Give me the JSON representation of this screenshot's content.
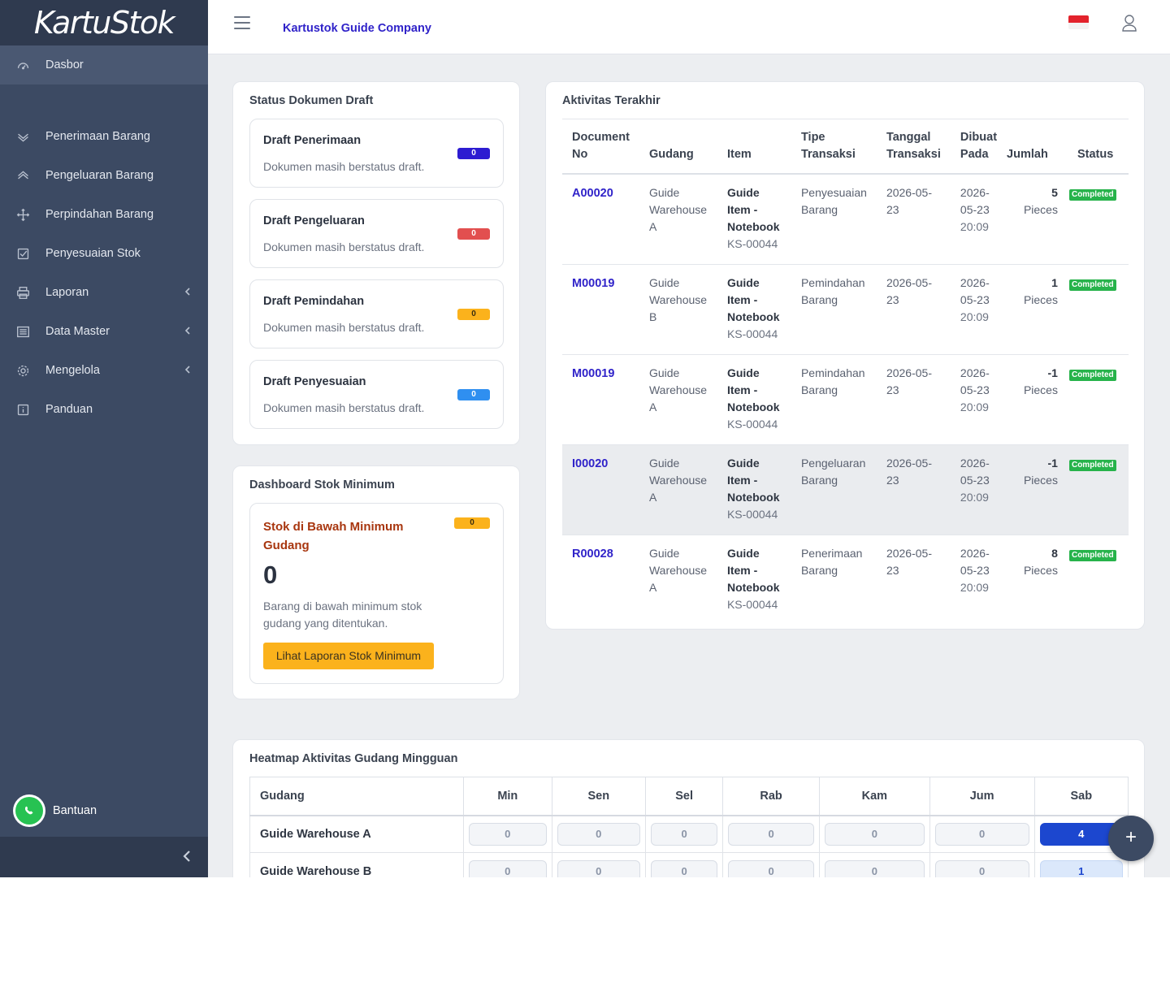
{
  "brand": {
    "name": "KartuStok"
  },
  "header": {
    "company": "Kartustok Guide Company"
  },
  "sidebar": {
    "items": [
      {
        "label": "Dasbor",
        "icon": "speedometer-icon"
      },
      {
        "label": "Penerimaan Barang",
        "icon": "chevron-down-double-icon"
      },
      {
        "label": "Pengeluaran Barang",
        "icon": "chevron-up-double-icon"
      },
      {
        "label": "Perpindahan Barang",
        "icon": "move-arrows-icon"
      },
      {
        "label": "Penyesuaian Stok",
        "icon": "checkbox-icon"
      },
      {
        "label": "Laporan",
        "icon": "printer-icon"
      },
      {
        "label": "Data Master",
        "icon": "list-icon"
      },
      {
        "label": "Mengelola",
        "icon": "gear-icon"
      },
      {
        "label": "Panduan",
        "icon": "info-icon"
      }
    ],
    "help_label": "Bantuan"
  },
  "draft": {
    "title": "Status Dokumen Draft",
    "items": [
      {
        "title": "Draft Penerimaan",
        "desc": "Dokumen masih berstatus draft.",
        "count": "0",
        "color": "#2d1cd1"
      },
      {
        "title": "Draft Pengeluaran",
        "desc": "Dokumen masih berstatus draft.",
        "count": "0",
        "color": "#e24f4f"
      },
      {
        "title": "Draft Pemindahan",
        "desc": "Dokumen masih berstatus draft.",
        "count": "0",
        "color": "#fbb21c"
      },
      {
        "title": "Draft Penyesuaian",
        "desc": "Dokumen masih berstatus draft.",
        "count": "0",
        "color": "#2f8ff0"
      }
    ]
  },
  "stok": {
    "title": "Dashboard Stok Minimum",
    "box_title": "Stok di Bawah Minimum Gudang",
    "badge": "0",
    "value": "0",
    "desc": "Barang di bawah minimum stok gudang yang ditentukan.",
    "button": "Lihat Laporan Stok Minimum"
  },
  "activity": {
    "title": "Aktivitas Terakhir",
    "columns": {
      "doc": "Document No",
      "gudang": "Gudang",
      "item": "Item",
      "tipe": "Tipe Transaksi",
      "tanggal": "Tanggal Transaksi",
      "dibuat": "Dibuat Pada",
      "jumlah": "Jumlah",
      "status": "Status"
    },
    "rows": [
      {
        "doc": "A00020",
        "gudang": "Guide Warehouse A",
        "item": "Guide Item - Notebook",
        "code": "KS-00044",
        "tipe": "Penyesuaian Barang",
        "tanggal": "2026-05-23",
        "dibuat": "2026-05-23",
        "time": "20:09",
        "qty": "5",
        "unit": "Pieces",
        "status": "Completed"
      },
      {
        "doc": "M00019",
        "gudang": "Guide Warehouse B",
        "item": "Guide Item - Notebook",
        "code": "KS-00044",
        "tipe": "Pemindahan Barang",
        "tanggal": "2026-05-23",
        "dibuat": "2026-05-23",
        "time": "20:09",
        "qty": "1",
        "unit": "Pieces",
        "status": "Completed"
      },
      {
        "doc": "M00019",
        "gudang": "Guide Warehouse A",
        "item": "Guide Item - Notebook",
        "code": "KS-00044",
        "tipe": "Pemindahan Barang",
        "tanggal": "2026-05-23",
        "dibuat": "2026-05-23",
        "time": "20:09",
        "qty": "-1",
        "unit": "Pieces",
        "status": "Completed"
      },
      {
        "doc": "I00020",
        "gudang": "Guide Warehouse A",
        "item": "Guide Item - Notebook",
        "code": "KS-00044",
        "tipe": "Pengeluaran Barang",
        "tanggal": "2026-05-23",
        "dibuat": "2026-05-23",
        "time": "20:09",
        "qty": "-1",
        "unit": "Pieces",
        "status": "Completed"
      },
      {
        "doc": "R00028",
        "gudang": "Guide Warehouse A",
        "item": "Guide Item - Notebook",
        "code": "KS-00044",
        "tipe": "Penerimaan Barang",
        "tanggal": "2026-05-23",
        "dibuat": "2026-05-23",
        "time": "20:09",
        "qty": "8",
        "unit": "Pieces",
        "status": "Completed"
      }
    ]
  },
  "heatmap": {
    "title": "Heatmap Aktivitas Gudang Mingguan",
    "first_col": "Gudang",
    "days": [
      "Min",
      "Sen",
      "Sel",
      "Rab",
      "Kam",
      "Jum",
      "Sab"
    ],
    "rows": [
      {
        "name": "Guide Warehouse A",
        "values": [
          "0",
          "0",
          "0",
          "0",
          "0",
          "0",
          "4"
        ]
      },
      {
        "name": "Guide Warehouse B",
        "values": [
          "0",
          "0",
          "0",
          "0",
          "0",
          "0",
          "1"
        ]
      }
    ]
  },
  "fab": {
    "label": "+"
  }
}
